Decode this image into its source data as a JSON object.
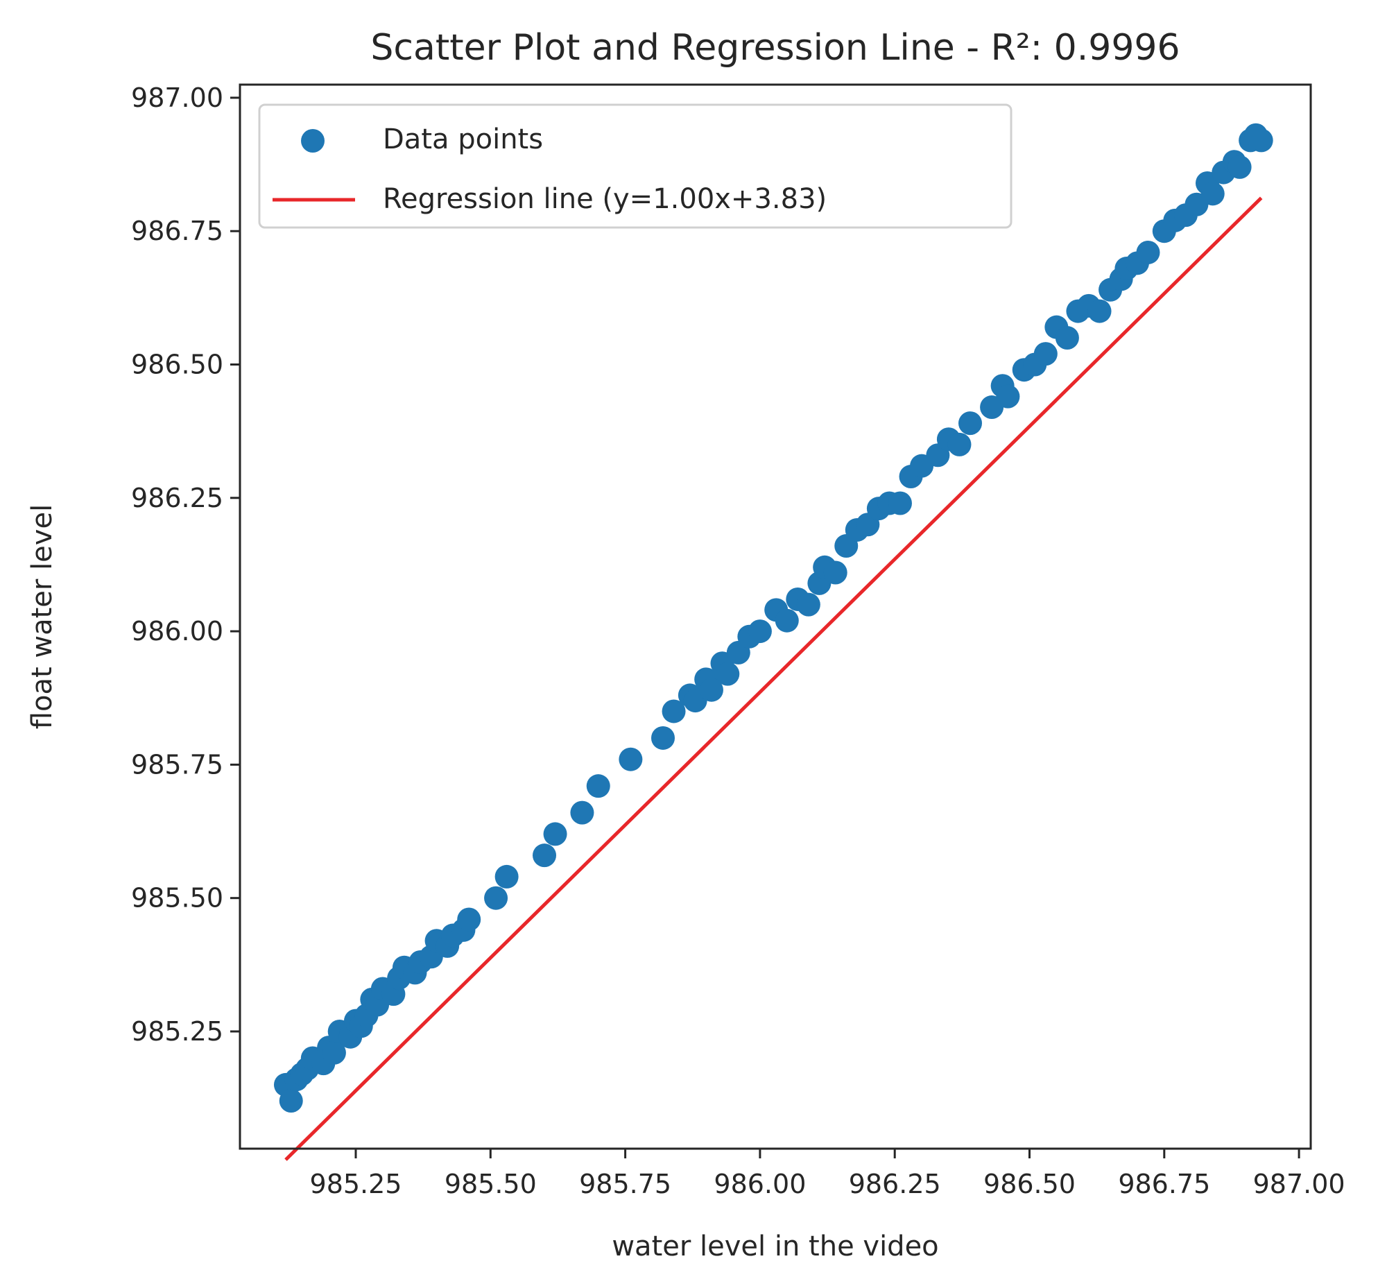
{
  "chart_data": {
    "type": "scatter",
    "title": "Scatter Plot and Regression Line - R²: 0.9996",
    "xlabel": "water level in the video",
    "ylabel": "float water level",
    "xlim": [
      985.04,
      987.01
    ],
    "ylim": [
      985.06,
      987.03
    ],
    "xticks": [
      985.25,
      985.5,
      985.75,
      986.0,
      986.25,
      986.5,
      986.75,
      987.0
    ],
    "xtick_labels": [
      "985.25",
      "985.50",
      "985.75",
      "986.00",
      "986.25",
      "986.50",
      "986.75",
      "987.00"
    ],
    "yticks": [
      985.25,
      985.5,
      985.75,
      986.0,
      986.25,
      986.5,
      986.75,
      987.0
    ],
    "ytick_labels": [
      "985.25",
      "985.50",
      "985.75",
      "986.00",
      "986.25",
      "986.50",
      "986.75",
      "987.00"
    ],
    "grid": false,
    "legend": {
      "placement": "top-left",
      "entries": [
        "Data points",
        "Regression line (y=1.00x+3.83)"
      ]
    },
    "colors": {
      "points": "#1f77b4",
      "line": "#e8272a"
    },
    "regression": {
      "slope": 0.996,
      "intercept": 3.83,
      "x_range": [
        985.12,
        986.93
      ]
    },
    "series": [
      {
        "name": "Data points",
        "points": [
          [
            985.12,
            985.15
          ],
          [
            985.13,
            985.12
          ],
          [
            985.14,
            985.16
          ],
          [
            985.15,
            985.17
          ],
          [
            985.16,
            985.18
          ],
          [
            985.17,
            985.2
          ],
          [
            985.19,
            985.19
          ],
          [
            985.2,
            985.22
          ],
          [
            985.21,
            985.21
          ],
          [
            985.22,
            985.25
          ],
          [
            985.24,
            985.24
          ],
          [
            985.25,
            985.27
          ],
          [
            985.26,
            985.26
          ],
          [
            985.27,
            985.28
          ],
          [
            985.28,
            985.31
          ],
          [
            985.29,
            985.3
          ],
          [
            985.3,
            985.33
          ],
          [
            985.32,
            985.32
          ],
          [
            985.33,
            985.35
          ],
          [
            985.34,
            985.37
          ],
          [
            985.36,
            985.36
          ],
          [
            985.37,
            985.38
          ],
          [
            985.39,
            985.39
          ],
          [
            985.4,
            985.42
          ],
          [
            985.42,
            985.41
          ],
          [
            985.43,
            985.43
          ],
          [
            985.45,
            985.44
          ],
          [
            985.46,
            985.46
          ],
          [
            985.51,
            985.5
          ],
          [
            985.53,
            985.54
          ],
          [
            985.6,
            985.58
          ],
          [
            985.62,
            985.62
          ],
          [
            985.67,
            985.66
          ],
          [
            985.7,
            985.71
          ],
          [
            985.76,
            985.76
          ],
          [
            985.82,
            985.8
          ],
          [
            985.84,
            985.85
          ],
          [
            985.87,
            985.88
          ],
          [
            985.88,
            985.87
          ],
          [
            985.9,
            985.91
          ],
          [
            985.91,
            985.89
          ],
          [
            985.93,
            985.94
          ],
          [
            985.94,
            985.92
          ],
          [
            985.96,
            985.96
          ],
          [
            985.98,
            985.99
          ],
          [
            986.0,
            986.0
          ],
          [
            986.03,
            986.04
          ],
          [
            986.05,
            986.02
          ],
          [
            986.07,
            986.06
          ],
          [
            986.09,
            986.05
          ],
          [
            986.11,
            986.09
          ],
          [
            986.12,
            986.12
          ],
          [
            986.14,
            986.11
          ],
          [
            986.16,
            986.16
          ],
          [
            986.18,
            986.19
          ],
          [
            986.2,
            986.2
          ],
          [
            986.22,
            986.23
          ],
          [
            986.24,
            986.24
          ],
          [
            986.26,
            986.24
          ],
          [
            986.28,
            986.29
          ],
          [
            986.3,
            986.31
          ],
          [
            986.33,
            986.33
          ],
          [
            986.35,
            986.36
          ],
          [
            986.37,
            986.35
          ],
          [
            986.39,
            986.39
          ],
          [
            986.43,
            986.42
          ],
          [
            986.45,
            986.46
          ],
          [
            986.46,
            986.44
          ],
          [
            986.49,
            986.49
          ],
          [
            986.51,
            986.5
          ],
          [
            986.53,
            986.52
          ],
          [
            986.55,
            986.57
          ],
          [
            986.57,
            986.55
          ],
          [
            986.59,
            986.6
          ],
          [
            986.61,
            986.61
          ],
          [
            986.63,
            986.6
          ],
          [
            986.65,
            986.64
          ],
          [
            986.67,
            986.66
          ],
          [
            986.68,
            986.68
          ],
          [
            986.7,
            986.69
          ],
          [
            986.72,
            986.71
          ],
          [
            986.75,
            986.75
          ],
          [
            986.77,
            986.77
          ],
          [
            986.79,
            986.78
          ],
          [
            986.81,
            986.8
          ],
          [
            986.83,
            986.84
          ],
          [
            986.84,
            986.82
          ],
          [
            986.86,
            986.86
          ],
          [
            986.88,
            986.88
          ],
          [
            986.89,
            986.87
          ],
          [
            986.91,
            986.92
          ],
          [
            986.92,
            986.93
          ],
          [
            986.93,
            986.92
          ]
        ]
      }
    ]
  }
}
